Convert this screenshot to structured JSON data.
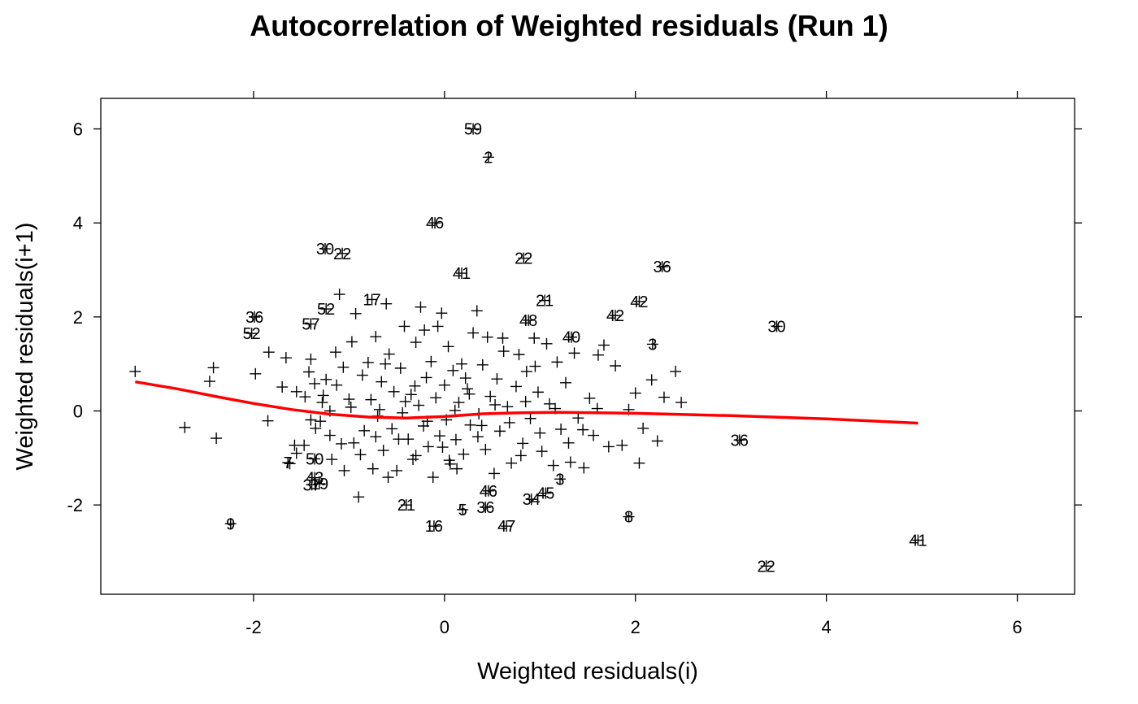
{
  "chart_data": {
    "type": "scatter",
    "title": "Autocorrelation of Weighted residuals (Run 1)",
    "xlabel": "Weighted residuals(i)",
    "ylabel": "Weighted residuals(i+1)",
    "xlim": [
      -3.6,
      6.6
    ],
    "ylim": [
      -3.9,
      6.65
    ],
    "xticks": [
      -2,
      0,
      2,
      4,
      6
    ],
    "yticks": [
      -2,
      0,
      2,
      4,
      6
    ],
    "xtick_labels": [
      "-2",
      "0",
      "2",
      "4",
      "6"
    ],
    "ytick_labels": [
      "-2",
      "0",
      "2",
      "4",
      "6"
    ],
    "grid": false,
    "marker": "+",
    "colors": {
      "points": "#000000",
      "smooth": "#ff0000",
      "frame": "#000000"
    },
    "labeled_points": [
      {
        "x": 0.3,
        "y": 6.0,
        "label": "59"
      },
      {
        "x": 0.46,
        "y": 5.4,
        "label": "2"
      },
      {
        "x": -0.1,
        "y": 4.0,
        "label": "46"
      },
      {
        "x": -1.25,
        "y": 3.45,
        "label": "30"
      },
      {
        "x": -1.07,
        "y": 3.35,
        "label": "22"
      },
      {
        "x": 0.83,
        "y": 3.25,
        "label": "22"
      },
      {
        "x": 0.18,
        "y": 2.93,
        "label": "41"
      },
      {
        "x": 2.28,
        "y": 3.07,
        "label": "36"
      },
      {
        "x": -0.76,
        "y": 2.37,
        "label": "17"
      },
      {
        "x": 1.05,
        "y": 2.35,
        "label": "21"
      },
      {
        "x": 2.04,
        "y": 2.33,
        "label": "42"
      },
      {
        "x": -1.24,
        "y": 2.17,
        "label": "52"
      },
      {
        "x": -1.99,
        "y": 2.0,
        "label": "36"
      },
      {
        "x": 1.79,
        "y": 2.03,
        "label": "42"
      },
      {
        "x": 0.88,
        "y": 1.93,
        "label": "48"
      },
      {
        "x": -1.4,
        "y": 1.85,
        "label": "57"
      },
      {
        "x": -2.02,
        "y": 1.65,
        "label": "52"
      },
      {
        "x": 3.48,
        "y": 1.8,
        "label": "30"
      },
      {
        "x": 1.33,
        "y": 1.57,
        "label": "40"
      },
      {
        "x": 2.18,
        "y": 1.42,
        "label": "3"
      },
      {
        "x": -1.36,
        "y": -1.02,
        "label": "50"
      },
      {
        "x": -1.64,
        "y": -1.1,
        "label": "7"
      },
      {
        "x": -1.36,
        "y": -1.42,
        "label": "43"
      },
      {
        "x": -1.39,
        "y": -1.57,
        "label": "37"
      },
      {
        "x": -1.31,
        "y": -1.55,
        "label": "19"
      },
      {
        "x": 0.46,
        "y": -1.7,
        "label": "46"
      },
      {
        "x": 1.06,
        "y": -1.75,
        "label": "45"
      },
      {
        "x": 0.91,
        "y": -1.88,
        "label": "34"
      },
      {
        "x": 1.21,
        "y": -1.45,
        "label": "3"
      },
      {
        "x": -0.4,
        "y": -2.0,
        "label": "21"
      },
      {
        "x": 0.19,
        "y": -2.1,
        "label": "5"
      },
      {
        "x": 0.43,
        "y": -2.05,
        "label": "36"
      },
      {
        "x": 1.93,
        "y": -2.25,
        "label": "8"
      },
      {
        "x": -2.24,
        "y": -2.4,
        "label": "9"
      },
      {
        "x": -0.11,
        "y": -2.45,
        "label": "16"
      },
      {
        "x": 0.65,
        "y": -2.45,
        "label": "47"
      },
      {
        "x": 3.09,
        "y": -0.62,
        "label": "36"
      },
      {
        "x": 4.96,
        "y": -2.75,
        "label": "41"
      },
      {
        "x": 3.37,
        "y": -3.3,
        "label": "22"
      }
    ],
    "points": [
      [
        -3.24,
        0.84
      ],
      [
        -2.72,
        -0.35
      ],
      [
        -2.42,
        0.92
      ],
      [
        -2.46,
        0.63
      ],
      [
        -2.39,
        -0.58
      ],
      [
        -1.98,
        0.79
      ],
      [
        -1.85,
        -0.21
      ],
      [
        -1.84,
        1.25
      ],
      [
        -1.66,
        1.13
      ],
      [
        -1.7,
        0.51
      ],
      [
        -1.55,
        0.41
      ],
      [
        -1.57,
        -0.73
      ],
      [
        -1.62,
        -1.12
      ],
      [
        -1.46,
        0.3
      ],
      [
        -1.4,
        1.1
      ],
      [
        -1.42,
        0.83
      ],
      [
        -1.36,
        0.58
      ],
      [
        -1.4,
        -0.19
      ],
      [
        -1.47,
        -0.73
      ],
      [
        -1.35,
        -0.37
      ],
      [
        -1.28,
        0.18
      ],
      [
        -1.3,
        -0.22
      ],
      [
        -1.24,
        0.67
      ],
      [
        -1.2,
        -0.52
      ],
      [
        -1.18,
        -1.03
      ],
      [
        -1.14,
        1.25
      ],
      [
        -1.13,
        0.55
      ],
      [
        -1.1,
        2.48
      ],
      [
        -1.06,
        0.93
      ],
      [
        -1.05,
        -1.27
      ],
      [
        -0.98,
        0.08
      ],
      [
        -0.95,
        -0.68
      ],
      [
        -0.93,
        2.07
      ],
      [
        -0.9,
        -1.83
      ],
      [
        -0.86,
        0.76
      ],
      [
        -0.84,
        -0.42
      ],
      [
        -0.8,
        1.03
      ],
      [
        -0.77,
        0.24
      ],
      [
        -0.75,
        -1.23
      ],
      [
        -0.72,
        1.58
      ],
      [
        -0.7,
        -0.11
      ],
      [
        -0.66,
        0.62
      ],
      [
        -0.64,
        -0.84
      ],
      [
        -0.61,
        2.28
      ],
      [
        -0.58,
        1.21
      ],
      [
        -0.55,
        -0.38
      ],
      [
        -0.53,
        0.41
      ],
      [
        -0.5,
        -1.27
      ],
      [
        -0.46,
        0.91
      ],
      [
        -0.44,
        -0.04
      ],
      [
        -0.42,
        1.8
      ],
      [
        -0.38,
        -0.6
      ],
      [
        -0.35,
        0.35
      ],
      [
        -0.33,
        -1.03
      ],
      [
        -0.3,
        1.46
      ],
      [
        -0.27,
        0.12
      ],
      [
        -0.25,
        2.21
      ],
      [
        -0.22,
        -0.32
      ],
      [
        -0.19,
        0.71
      ],
      [
        -0.17,
        -0.76
      ],
      [
        -0.14,
        1.05
      ],
      [
        -0.12,
        -1.41
      ],
      [
        -0.09,
        0.28
      ],
      [
        -0.07,
        1.8
      ],
      [
        -0.05,
        -0.53
      ],
      [
        -0.03,
        2.08
      ],
      [
        0.0,
        0.55
      ],
      [
        0.02,
        -0.19
      ],
      [
        0.04,
        1.37
      ],
      [
        0.06,
        -1.13
      ],
      [
        0.09,
        0.86
      ],
      [
        0.12,
        -0.61
      ],
      [
        0.15,
        0.18
      ],
      [
        0.18,
        1.0
      ],
      [
        0.2,
        -0.92
      ],
      [
        0.24,
        0.47
      ],
      [
        0.27,
        -0.3
      ],
      [
        0.3,
        1.66
      ],
      [
        0.34,
        2.13
      ],
      [
        0.36,
        -0.06
      ],
      [
        0.4,
        0.98
      ],
      [
        0.43,
        -0.82
      ],
      [
        0.45,
        1.57
      ],
      [
        0.48,
        0.31
      ],
      [
        0.52,
        -1.33
      ],
      [
        0.55,
        0.68
      ],
      [
        0.58,
        -0.43
      ],
      [
        0.62,
        1.27
      ],
      [
        0.66,
        0.09
      ],
      [
        0.7,
        -1.11
      ],
      [
        0.75,
        0.52
      ],
      [
        0.78,
        1.2
      ],
      [
        0.82,
        -0.69
      ],
      [
        0.86,
        0.84
      ],
      [
        0.9,
        -0.16
      ],
      [
        0.94,
        1.55
      ],
      [
        0.98,
        0.4
      ],
      [
        1.02,
        -0.86
      ],
      [
        1.07,
        1.43
      ],
      [
        1.1,
        0.15
      ],
      [
        1.14,
        -1.16
      ],
      [
        1.18,
        1.04
      ],
      [
        1.22,
        -0.39
      ],
      [
        1.27,
        0.6
      ],
      [
        1.32,
        -1.09
      ],
      [
        1.36,
        1.23
      ],
      [
        1.4,
        -0.15
      ],
      [
        1.46,
        -1.21
      ],
      [
        1.52,
        0.27
      ],
      [
        1.56,
        -0.52
      ],
      [
        1.61,
        1.19
      ],
      [
        1.67,
        1.4
      ],
      [
        1.72,
        -0.76
      ],
      [
        1.79,
        0.96
      ],
      [
        1.86,
        -0.73
      ],
      [
        1.93,
        0.03
      ],
      [
        2.0,
        0.38
      ],
      [
        2.04,
        -1.11
      ],
      [
        2.08,
        -0.37
      ],
      [
        2.17,
        0.66
      ],
      [
        2.23,
        -0.64
      ],
      [
        2.3,
        0.29
      ],
      [
        2.42,
        0.84
      ],
      [
        2.48,
        0.18
      ],
      [
        -1.27,
        0.33
      ],
      [
        -1.08,
        -0.7
      ],
      [
        -0.88,
        -0.93
      ],
      [
        -0.68,
        0.03
      ],
      [
        -0.48,
        -0.6
      ],
      [
        -0.31,
        0.53
      ],
      [
        -0.18,
        -0.22
      ],
      [
        -0.02,
        -0.77
      ],
      [
        0.11,
        0.01
      ],
      [
        0.26,
        0.36
      ],
      [
        0.39,
        -0.31
      ],
      [
        0.53,
        0.13
      ],
      [
        0.68,
        -0.25
      ],
      [
        0.85,
        0.2
      ],
      [
        1.0,
        -0.47
      ],
      [
        1.16,
        0.05
      ],
      [
        1.3,
        -0.68
      ],
      [
        -0.97,
        1.47
      ],
      [
        -0.59,
        -1.41
      ],
      [
        -0.21,
        1.72
      ],
      [
        0.13,
        -1.23
      ],
      [
        0.61,
        1.55
      ],
      [
        -1.55,
        -0.9
      ],
      [
        -0.3,
        -0.95
      ],
      [
        0.95,
        0.95
      ],
      [
        -0.72,
        -0.55
      ],
      [
        0.22,
        0.7
      ],
      [
        1.45,
        -0.4
      ],
      [
        -1.0,
        0.25
      ],
      [
        0.35,
        -0.55
      ],
      [
        -0.41,
        0.2
      ],
      [
        0.8,
        -0.95
      ],
      [
        -1.2,
        0.0
      ],
      [
        1.6,
        0.05
      ],
      [
        -0.62,
        1.0
      ],
      [
        0.05,
        -1.05
      ]
    ],
    "smooth_line": [
      [
        -3.24,
        0.62
      ],
      [
        -2.8,
        0.47
      ],
      [
        -2.4,
        0.31
      ],
      [
        -2.0,
        0.16
      ],
      [
        -1.6,
        0.03
      ],
      [
        -1.2,
        -0.07
      ],
      [
        -0.8,
        -0.13
      ],
      [
        -0.4,
        -0.15
      ],
      [
        0.0,
        -0.12
      ],
      [
        0.4,
        -0.06
      ],
      [
        0.8,
        -0.04
      ],
      [
        1.2,
        -0.03
      ],
      [
        1.6,
        -0.04
      ],
      [
        2.0,
        -0.05
      ],
      [
        3.0,
        -0.1
      ],
      [
        4.0,
        -0.17
      ],
      [
        4.96,
        -0.26
      ]
    ]
  }
}
